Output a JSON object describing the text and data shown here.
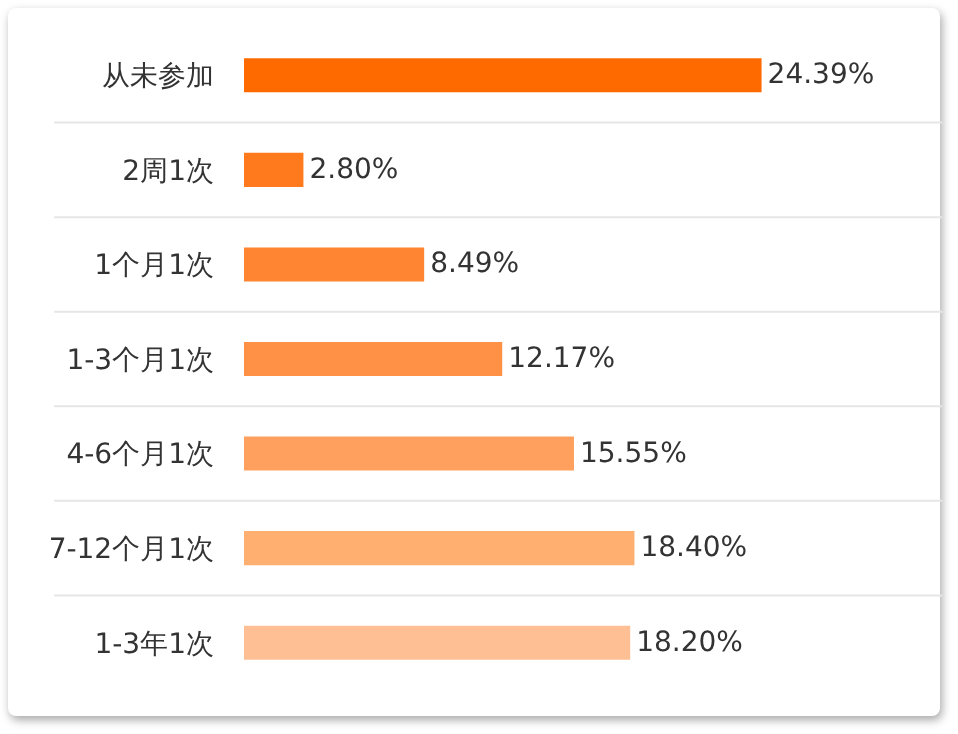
{
  "chart_data": {
    "type": "bar",
    "orientation": "horizontal",
    "tick_labels": "y",
    "data_labels": true,
    "categories": [
      "从未参加",
      "2周1次",
      "1个月1次",
      "1-3个月1次",
      "4-6个月1次",
      "7-12个月1次",
      "1-3年1次"
    ],
    "values": [
      24.39,
      2.8,
      8.49,
      12.17,
      15.55,
      18.4,
      18.2
    ],
    "value_labels": [
      "24.39%",
      "2.80%",
      "8.49%",
      "12.17%",
      "15.55%",
      "18.40%",
      "18.20%"
    ],
    "colors": [
      "#ff6a00",
      "#ff7a1c",
      "#ff8533",
      "#ff9147",
      "#ffa05e",
      "#ffb070",
      "#ffbf94"
    ]
  }
}
